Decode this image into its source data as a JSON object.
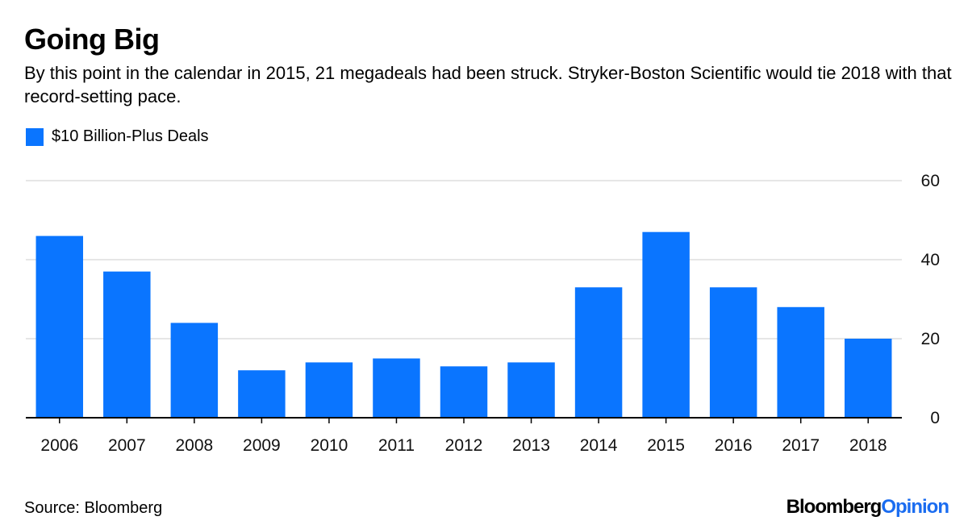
{
  "title": "Going Big",
  "subtitle": "By this point in the calendar in 2015, 21 megadeals had been struck. Stryker-Boston Scientific would tie 2018 with that record-setting pace.",
  "source": "Source: Bloomberg",
  "brand": {
    "name": "Bloomberg",
    "suffix": "Opinion",
    "suffix_color": "#1a6cf0"
  },
  "colors": {
    "bar": "#0a75ff",
    "grid": "#e6e6e6",
    "axis": "#000000"
  },
  "chart_data": {
    "type": "bar",
    "categories": [
      "2006",
      "2007",
      "2008",
      "2009",
      "2010",
      "2011",
      "2012",
      "2013",
      "2014",
      "2015",
      "2016",
      "2017",
      "2018"
    ],
    "series": [
      {
        "name": "$10 Billion-Plus Deals",
        "values": [
          46,
          37,
          24,
          12,
          14,
          15,
          13,
          14,
          33,
          47,
          33,
          28,
          20
        ]
      }
    ],
    "ylim": [
      0,
      60
    ],
    "yticks": [
      0,
      20,
      40,
      60
    ],
    "y_axis_position": "right",
    "legend_position": "top-left",
    "grid": true,
    "xlabel": "",
    "ylabel": ""
  }
}
